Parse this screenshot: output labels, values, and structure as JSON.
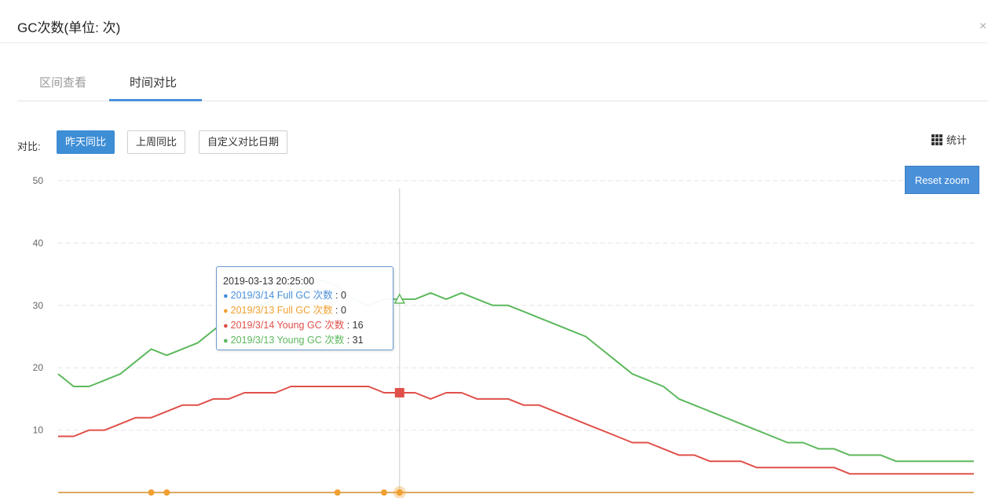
{
  "header": {
    "title": "GC次数(单位: 次)",
    "close_glyph": "×"
  },
  "tabs": [
    {
      "label": "区间查看",
      "active": false
    },
    {
      "label": "时间对比",
      "active": true
    }
  ],
  "toolbar": {
    "compare_label": "对比:",
    "buttons": [
      {
        "label": "昨天同比",
        "active": true
      },
      {
        "label": "上周同比",
        "active": false
      },
      {
        "label": "自定义对比日期",
        "active": false
      }
    ],
    "stats_label": "统计",
    "stats_icon": "grid-icon",
    "reset_zoom_label": "Reset zoom"
  },
  "colors": {
    "blue": "#4a90d9",
    "orange": "#f0a030",
    "red": "#e0504a",
    "green": "#5cb85c"
  },
  "tooltip": {
    "time": "2019-03-13 20:25:00",
    "rows": [
      {
        "label": "2019/3/14 Full GC 次数",
        "value": "0",
        "color": "#4a90d9"
      },
      {
        "label": "2019/3/13 Full GC 次数",
        "value": "0",
        "color": "#f0a030"
      },
      {
        "label": "2019/3/14 Young GC 次数",
        "value": "16",
        "color": "#e0504a"
      },
      {
        "label": "2019/3/13 Young GC 次数",
        "value": "31",
        "color": "#5cb85c"
      }
    ]
  },
  "chart_data": {
    "type": "line",
    "ylim": [
      0,
      50
    ],
    "yticks": [
      10,
      20,
      30,
      40,
      50
    ],
    "grid": true,
    "legend": "none",
    "x_count": 60,
    "hover_index": 22,
    "series": [
      {
        "name": "2019/3/13 Young GC 次数",
        "color": "#5cb85c",
        "values": [
          19,
          17,
          17,
          18,
          19,
          21,
          23,
          22,
          23,
          24,
          26,
          28,
          29,
          30,
          31,
          32,
          33,
          34,
          33,
          31,
          30,
          31,
          31,
          31,
          32,
          31,
          32,
          31,
          30,
          30,
          29,
          28,
          27,
          26,
          25,
          23,
          21,
          19,
          18,
          17,
          15,
          14,
          13,
          12,
          11,
          10,
          9,
          8,
          8,
          7,
          7,
          6,
          6,
          6,
          5,
          5,
          5,
          5,
          5,
          5
        ]
      },
      {
        "name": "2019/3/14 Young GC 次数",
        "color": "#e0504a",
        "values": [
          9,
          9,
          10,
          10,
          11,
          12,
          12,
          13,
          14,
          14,
          15,
          15,
          16,
          16,
          16,
          17,
          17,
          17,
          17,
          17,
          17,
          16,
          16,
          16,
          15,
          16,
          16,
          15,
          15,
          15,
          14,
          14,
          13,
          12,
          11,
          10,
          9,
          8,
          8,
          7,
          6,
          6,
          5,
          5,
          5,
          4,
          4,
          4,
          4,
          4,
          4,
          3,
          3,
          3,
          3,
          3,
          3,
          3,
          3,
          3
        ]
      },
      {
        "name": "2019/3/14 Full GC 次数",
        "color": "#4a90d9",
        "values": [
          0,
          0,
          0,
          0,
          0,
          0,
          0,
          0,
          0,
          0,
          0,
          0,
          0,
          0,
          0,
          0,
          0,
          0,
          0,
          0,
          0,
          0,
          0,
          0,
          0,
          0,
          0,
          0,
          0,
          0,
          0,
          0,
          0,
          0,
          0,
          0,
          0,
          0,
          0,
          0,
          0,
          0,
          0,
          0,
          0,
          0,
          0,
          0,
          0,
          0,
          0,
          0,
          0,
          0,
          0,
          0,
          0,
          0,
          0,
          0
        ]
      },
      {
        "name": "2019/3/13 Full GC 次数",
        "color": "#f0a030",
        "values": [
          0,
          0,
          0,
          0,
          0,
          0,
          0,
          0,
          0,
          0,
          0,
          0,
          0,
          0,
          0,
          0,
          0,
          0,
          0,
          0,
          0,
          0,
          0,
          0,
          0,
          0,
          0,
          0,
          0,
          0,
          0,
          0,
          0,
          0,
          0,
          0,
          0,
          0,
          0,
          0,
          0,
          0,
          0,
          0,
          0,
          0,
          0,
          0,
          0,
          0,
          0,
          0,
          0,
          0,
          0,
          0,
          0,
          0,
          0,
          0
        ],
        "marker_indices": [
          6,
          7,
          18,
          21,
          22
        ]
      }
    ]
  }
}
